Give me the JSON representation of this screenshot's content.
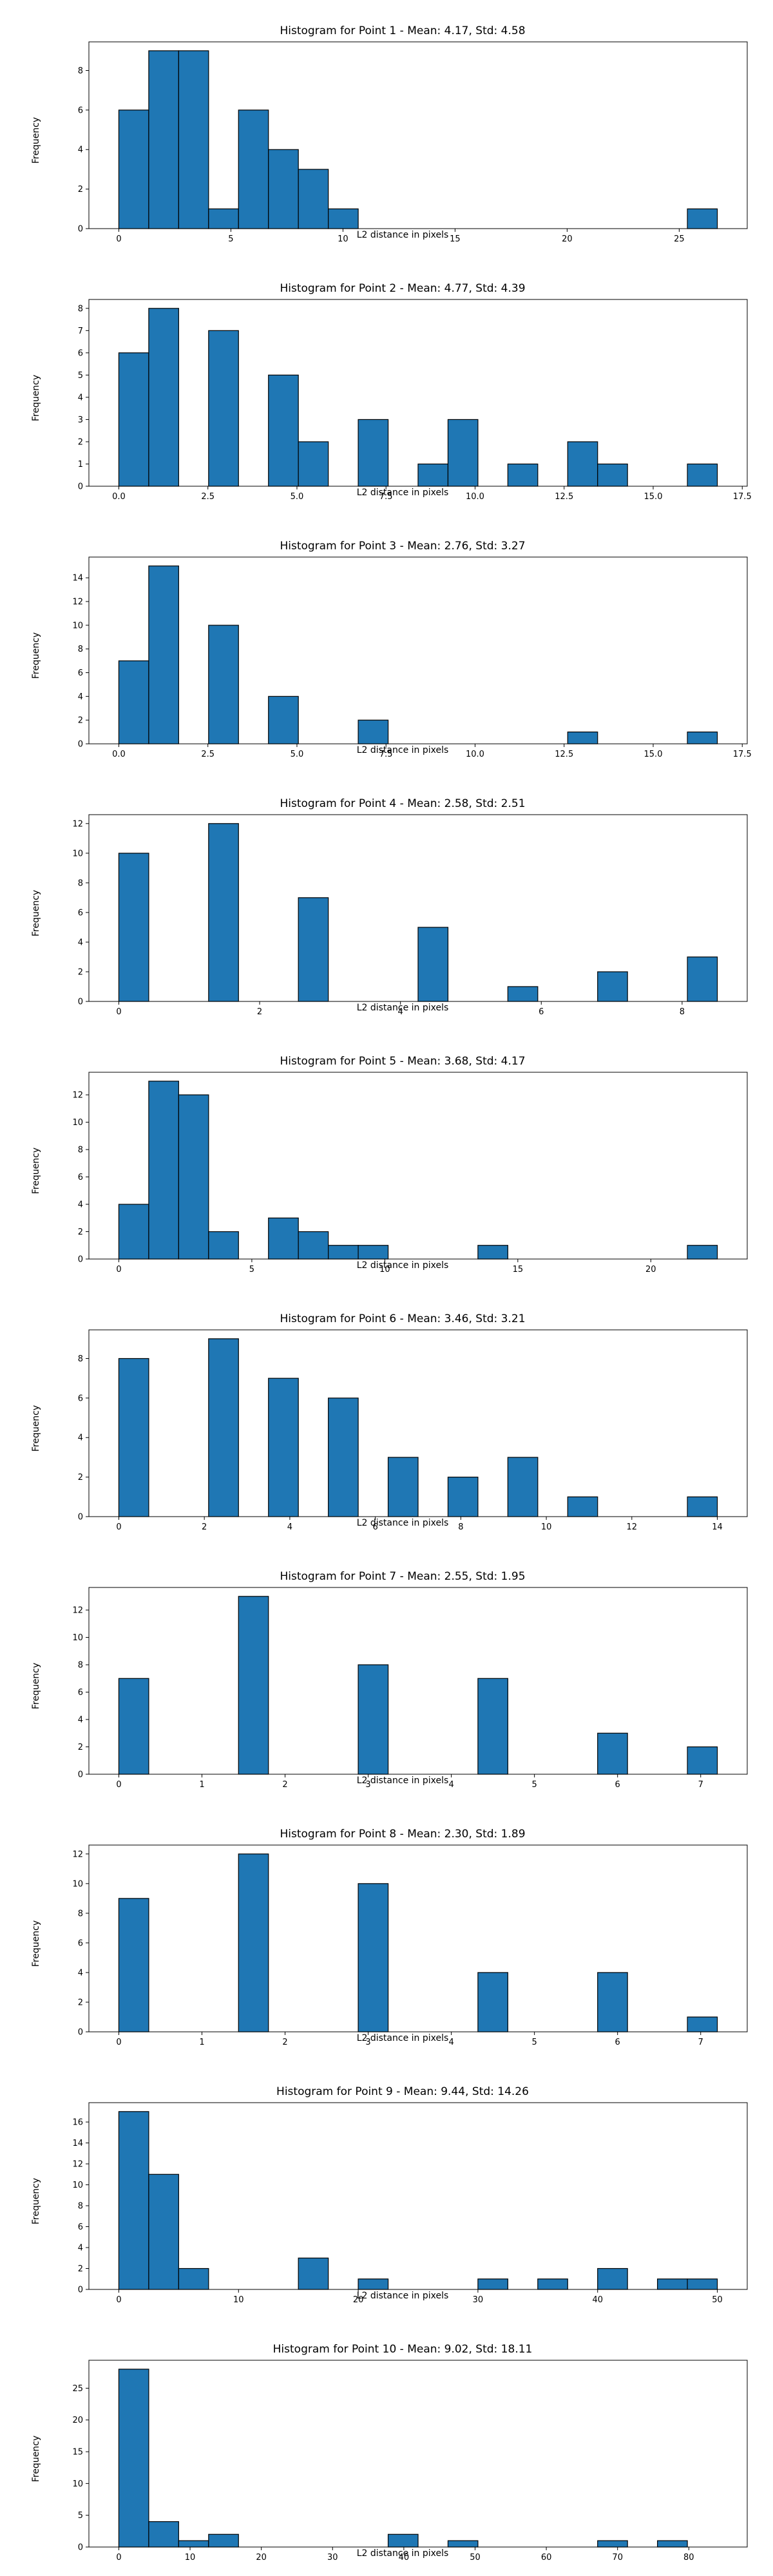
{
  "chart_data": [
    {
      "type": "bar",
      "title": "Histogram for Point 1 - Mean: 4.17, Std: 4.58",
      "xlabel": "L2 distance in pixels",
      "ylabel": "Frequency",
      "xlim": [
        -1.335,
        28.035
      ],
      "ylim": [
        0,
        9.45
      ],
      "xticks": [
        0,
        5,
        10,
        15,
        20,
        25
      ],
      "xtick_labels": [
        "0",
        "5",
        "10",
        "15",
        "20",
        "25"
      ],
      "yticks": [
        0,
        2,
        4,
        6,
        8
      ],
      "ytick_labels": [
        "0",
        "2",
        "4",
        "6",
        "8"
      ],
      "bin_start": 0.0,
      "bin_width": 1.335,
      "values": [
        6,
        9,
        9,
        1,
        6,
        4,
        3,
        1,
        0,
        0,
        0,
        0,
        0,
        0,
        0,
        0,
        0,
        0,
        0,
        1
      ],
      "bar_color": "#1f77b4",
      "edge_color": "#000000"
    },
    {
      "type": "bar",
      "title": "Histogram for Point 2 - Mean: 4.77, Std: 4.39",
      "xlabel": "L2 distance in pixels",
      "ylabel": "Frequency",
      "xlim": [
        -0.84,
        17.64
      ],
      "ylim": [
        0,
        8.4
      ],
      "xticks": [
        0,
        2.5,
        5,
        7.5,
        10,
        12.5,
        15,
        17.5
      ],
      "xtick_labels": [
        "0.0",
        "2.5",
        "5.0",
        "7.5",
        "10.0",
        "12.5",
        "15.0",
        "17.5"
      ],
      "yticks": [
        0,
        1,
        2,
        3,
        4,
        5,
        6,
        7,
        8
      ],
      "ytick_labels": [
        "0",
        "1",
        "2",
        "3",
        "4",
        "5",
        "6",
        "7",
        "8"
      ],
      "bin_start": 0.0,
      "bin_width": 0.84,
      "values": [
        6,
        8,
        0,
        7,
        0,
        5,
        2,
        0,
        3,
        0,
        1,
        3,
        0,
        1,
        0,
        2,
        1,
        0,
        0,
        1
      ],
      "bar_color": "#1f77b4",
      "edge_color": "#000000"
    },
    {
      "type": "bar",
      "title": "Histogram for Point 3 - Mean: 2.76, Std: 3.27",
      "xlabel": "L2 distance in pixels",
      "ylabel": "Frequency",
      "xlim": [
        -0.84,
        17.64
      ],
      "ylim": [
        0,
        15.75
      ],
      "xticks": [
        0,
        2.5,
        5,
        7.5,
        10,
        12.5,
        15,
        17.5
      ],
      "xtick_labels": [
        "0.0",
        "2.5",
        "5.0",
        "7.5",
        "10.0",
        "12.5",
        "15.0",
        "17.5"
      ],
      "yticks": [
        0,
        2,
        4,
        6,
        8,
        10,
        12,
        14
      ],
      "ytick_labels": [
        "0",
        "2",
        "4",
        "6",
        "8",
        "10",
        "12",
        "14"
      ],
      "bin_start": 0.0,
      "bin_width": 0.84,
      "values": [
        7,
        15,
        0,
        10,
        0,
        4,
        0,
        0,
        2,
        0,
        0,
        0,
        0,
        0,
        0,
        1,
        0,
        0,
        0,
        1
      ],
      "bar_color": "#1f77b4",
      "edge_color": "#000000"
    },
    {
      "type": "bar",
      "title": "Histogram for Point 4 - Mean: 2.58, Std: 2.51",
      "xlabel": "L2 distance in pixels",
      "ylabel": "Frequency",
      "xlim": [
        -0.425,
        8.925
      ],
      "ylim": [
        0,
        12.6
      ],
      "xticks": [
        0,
        2,
        4,
        6,
        8
      ],
      "xtick_labels": [
        "0",
        "2",
        "4",
        "6",
        "8"
      ],
      "yticks": [
        0,
        2,
        4,
        6,
        8,
        10,
        12
      ],
      "ytick_labels": [
        "0",
        "2",
        "4",
        "6",
        "8",
        "10",
        "12"
      ],
      "bin_start": 0.0,
      "bin_width": 0.425,
      "values": [
        10,
        0,
        0,
        12,
        0,
        0,
        7,
        0,
        0,
        0,
        5,
        0,
        0,
        1,
        0,
        0,
        2,
        0,
        0,
        3
      ],
      "bar_color": "#1f77b4",
      "edge_color": "#000000"
    },
    {
      "type": "bar",
      "title": "Histogram for Point 5 - Mean: 3.68, Std: 4.17",
      "xlabel": "L2 distance in pixels",
      "ylabel": "Frequency",
      "xlim": [
        -1.125,
        23.625
      ],
      "ylim": [
        0,
        13.65
      ],
      "xticks": [
        0,
        5,
        10,
        15,
        20
      ],
      "xtick_labels": [
        "0",
        "5",
        "10",
        "15",
        "20"
      ],
      "yticks": [
        0,
        2,
        4,
        6,
        8,
        10,
        12
      ],
      "ytick_labels": [
        "0",
        "2",
        "4",
        "6",
        "8",
        "10",
        "12"
      ],
      "bin_start": 0.0,
      "bin_width": 1.125,
      "values": [
        4,
        13,
        12,
        2,
        0,
        3,
        2,
        1,
        1,
        0,
        0,
        0,
        1,
        0,
        0,
        0,
        0,
        0,
        0,
        1
      ],
      "bar_color": "#1f77b4",
      "edge_color": "#000000"
    },
    {
      "type": "bar",
      "title": "Histogram for Point 6 - Mean: 3.46, Std: 3.21",
      "xlabel": "L2 distance in pixels",
      "ylabel": "Frequency",
      "xlim": [
        -0.7,
        14.7
      ],
      "ylim": [
        0,
        9.45
      ],
      "xticks": [
        0,
        2,
        4,
        6,
        8,
        10,
        12,
        14
      ],
      "xtick_labels": [
        "0",
        "2",
        "4",
        "6",
        "8",
        "10",
        "12",
        "14"
      ],
      "yticks": [
        0,
        2,
        4,
        6,
        8
      ],
      "ytick_labels": [
        "0",
        "2",
        "4",
        "6",
        "8"
      ],
      "bin_start": 0.0,
      "bin_width": 0.7,
      "values": [
        8,
        0,
        0,
        9,
        0,
        7,
        0,
        6,
        0,
        3,
        0,
        2,
        0,
        3,
        0,
        1,
        0,
        0,
        0,
        1
      ],
      "bar_color": "#1f77b4",
      "edge_color": "#000000"
    },
    {
      "type": "bar",
      "title": "Histogram for Point 7 - Mean: 2.55, Std: 1.95",
      "xlabel": "L2 distance in pixels",
      "ylabel": "Frequency",
      "xlim": [
        -0.36,
        7.56
      ],
      "ylim": [
        0,
        13.65
      ],
      "xticks": [
        0,
        1,
        2,
        3,
        4,
        5,
        6,
        7
      ],
      "xtick_labels": [
        "0",
        "1",
        "2",
        "3",
        "4",
        "5",
        "6",
        "7"
      ],
      "yticks": [
        0,
        2,
        4,
        6,
        8,
        10,
        12
      ],
      "ytick_labels": [
        "0",
        "2",
        "4",
        "6",
        "8",
        "10",
        "12"
      ],
      "bin_start": 0.0,
      "bin_width": 0.36,
      "values": [
        7,
        0,
        0,
        0,
        13,
        0,
        0,
        0,
        8,
        0,
        0,
        0,
        7,
        0,
        0,
        0,
        3,
        0,
        0,
        2
      ],
      "bar_color": "#1f77b4",
      "edge_color": "#000000"
    },
    {
      "type": "bar",
      "title": "Histogram for Point 8 - Mean: 2.30, Std: 1.89",
      "xlabel": "L2 distance in pixels",
      "ylabel": "Frequency",
      "xlim": [
        -0.36,
        7.56
      ],
      "ylim": [
        0,
        12.6
      ],
      "xticks": [
        0,
        1,
        2,
        3,
        4,
        5,
        6,
        7
      ],
      "xtick_labels": [
        "0",
        "1",
        "2",
        "3",
        "4",
        "5",
        "6",
        "7"
      ],
      "yticks": [
        0,
        2,
        4,
        6,
        8,
        10,
        12
      ],
      "ytick_labels": [
        "0",
        "2",
        "4",
        "6",
        "8",
        "10",
        "12"
      ],
      "bin_start": 0.0,
      "bin_width": 0.36,
      "values": [
        9,
        0,
        0,
        0,
        12,
        0,
        0,
        0,
        10,
        0,
        0,
        0,
        4,
        0,
        0,
        0,
        4,
        0,
        0,
        1
      ],
      "bar_color": "#1f77b4",
      "edge_color": "#000000"
    },
    {
      "type": "bar",
      "title": "Histogram for Point 9 - Mean: 9.44, Std: 14.26",
      "xlabel": "L2 distance in pixels",
      "ylabel": "Frequency",
      "xlim": [
        -2.5,
        52.5
      ],
      "ylim": [
        0,
        17.85
      ],
      "xticks": [
        0,
        10,
        20,
        30,
        40,
        50
      ],
      "xtick_labels": [
        "0",
        "10",
        "20",
        "30",
        "40",
        "50"
      ],
      "yticks": [
        0,
        2,
        4,
        6,
        8,
        10,
        12,
        14,
        16
      ],
      "ytick_labels": [
        "0",
        "2",
        "4",
        "6",
        "8",
        "10",
        "12",
        "14",
        "16"
      ],
      "bin_start": 0.0,
      "bin_width": 2.5,
      "values": [
        17,
        11,
        2,
        0,
        0,
        0,
        3,
        0,
        1,
        0,
        0,
        0,
        1,
        0,
        1,
        0,
        2,
        0,
        1,
        1
      ],
      "bar_color": "#1f77b4",
      "edge_color": "#000000"
    },
    {
      "type": "bar",
      "title": "Histogram for Point 10 - Mean: 9.02, Std: 18.11",
      "xlabel": "L2 distance in pixels",
      "ylabel": "Frequency",
      "xlim": [
        -4.2,
        88.2
      ],
      "ylim": [
        0,
        29.4
      ],
      "xticks": [
        0,
        10,
        20,
        30,
        40,
        50,
        60,
        70,
        80
      ],
      "xtick_labels": [
        "0",
        "10",
        "20",
        "30",
        "40",
        "50",
        "60",
        "70",
        "80"
      ],
      "yticks": [
        0,
        5,
        10,
        15,
        20,
        25
      ],
      "ytick_labels": [
        "0",
        "5",
        "10",
        "15",
        "20",
        "25"
      ],
      "bin_start": 0.0,
      "bin_width": 4.2,
      "values": [
        28,
        4,
        1,
        2,
        0,
        0,
        0,
        0,
        0,
        2,
        0,
        1,
        0,
        0,
        0,
        0,
        1,
        0,
        1,
        0
      ],
      "bar_color": "#1f77b4",
      "edge_color": "#000000"
    }
  ]
}
